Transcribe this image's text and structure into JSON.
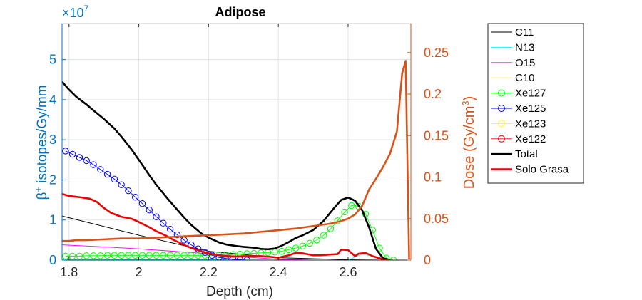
{
  "chart_data": {
    "type": "line",
    "title": "Adipose",
    "xlabel": "Depth (cm)",
    "ylabel_left": "β+ isotopes/Gy/mm",
    "ylabel_left_base": "β",
    "ylabel_left_sup": "+",
    "ylabel_left_rest": " isotopes/Gy/mm",
    "ylabel_right": "Dose (Gy/cm3)",
    "ylabel_right_base": "Dose (Gy/cm",
    "ylabel_right_sup": "3",
    "ylabel_right_end": ")",
    "left_axis_multiplier": "×10",
    "left_axis_exponent": "7",
    "xlim": [
      1.78,
      2.78
    ],
    "ylim_left": [
      0,
      5.9
    ],
    "ylim_right": [
      0,
      0.285
    ],
    "x_ticks": [
      1.8,
      2,
      2.2,
      2.4,
      2.6
    ],
    "x_tick_labels": [
      "1.8",
      "2",
      "2.2",
      "2.4",
      "2.6"
    ],
    "y_left_ticks": [
      0,
      1,
      2,
      3,
      4,
      5
    ],
    "y_left_tick_labels": [
      "0",
      "1",
      "2",
      "3",
      "4",
      "5"
    ],
    "y_right_ticks": [
      0,
      0.05,
      0.1,
      0.15,
      0.2,
      0.25
    ],
    "y_right_tick_labels": [
      "0",
      "0.05",
      "0.1",
      "0.15",
      "0.2",
      "0.25"
    ],
    "grid": true,
    "legend_position": "outside-right",
    "series": [
      {
        "name": "C11",
        "axis": "left",
        "color": "#000000",
        "width": 0.9,
        "marker": "none",
        "x": [
          1.78,
          2.0,
          2.2,
          2.4,
          2.6,
          2.7
        ],
        "y": [
          1.1,
          0.62,
          0.22,
          0.06,
          0.01,
          0.0
        ]
      },
      {
        "name": "N13",
        "axis": "left",
        "color": "#00ffff",
        "width": 0.9,
        "marker": "none",
        "x": [
          1.78,
          2.2,
          2.4,
          2.6,
          2.64,
          2.7,
          2.72
        ],
        "y": [
          0.02,
          0.01,
          0.0,
          0.0,
          0.15,
          0.05,
          0.0
        ]
      },
      {
        "name": "O15",
        "axis": "left",
        "color": "#ff00ff",
        "width": 0.9,
        "marker": "none",
        "x": [
          1.78,
          1.9,
          2.0,
          2.1,
          2.2,
          2.3,
          2.4,
          2.5
        ],
        "y": [
          0.38,
          0.33,
          0.28,
          0.22,
          0.16,
          0.08,
          0.02,
          0.0
        ]
      },
      {
        "name": "C10",
        "axis": "left",
        "color": "#ffff00",
        "width": 0.9,
        "marker": "none",
        "x": [
          1.78,
          2.78
        ],
        "y": [
          0.0,
          0.0
        ]
      },
      {
        "name": "Xe127",
        "axis": "left",
        "color": "#00ff00",
        "width": 0.9,
        "marker": "circle",
        "x": [
          1.79,
          1.81,
          1.83,
          1.85,
          1.87,
          1.89,
          1.91,
          1.93,
          1.95,
          1.97,
          1.99,
          2.01,
          2.03,
          2.05,
          2.07,
          2.09,
          2.11,
          2.13,
          2.15,
          2.17,
          2.19,
          2.21,
          2.23,
          2.25,
          2.27,
          2.29,
          2.31,
          2.33,
          2.35,
          2.37,
          2.39,
          2.41,
          2.43,
          2.45,
          2.47,
          2.49,
          2.51,
          2.53,
          2.55,
          2.57,
          2.59,
          2.61,
          2.63,
          2.65,
          2.67,
          2.69,
          2.71,
          2.73
        ],
        "y": [
          0.1,
          0.1,
          0.1,
          0.11,
          0.11,
          0.11,
          0.12,
          0.12,
          0.12,
          0.12,
          0.12,
          0.12,
          0.12,
          0.12,
          0.12,
          0.12,
          0.12,
          0.12,
          0.12,
          0.12,
          0.12,
          0.12,
          0.13,
          0.13,
          0.14,
          0.15,
          0.16,
          0.17,
          0.18,
          0.19,
          0.2,
          0.22,
          0.26,
          0.3,
          0.35,
          0.42,
          0.5,
          0.62,
          0.78,
          0.98,
          1.2,
          1.36,
          1.34,
          1.15,
          0.75,
          0.3,
          0.05,
          0.0
        ]
      },
      {
        "name": "Xe125",
        "axis": "left",
        "color": "#0000ff",
        "width": 0.9,
        "marker": "circle",
        "x": [
          1.79,
          1.81,
          1.83,
          1.85,
          1.87,
          1.89,
          1.91,
          1.93,
          1.95,
          1.97,
          1.99,
          2.01,
          2.03,
          2.05,
          2.07,
          2.09,
          2.11,
          2.13,
          2.15,
          2.17,
          2.19,
          2.21,
          2.23,
          2.25,
          2.27,
          2.29,
          2.31
        ],
        "y": [
          2.72,
          2.64,
          2.56,
          2.48,
          2.38,
          2.26,
          2.14,
          2.02,
          1.88,
          1.73,
          1.57,
          1.41,
          1.25,
          1.08,
          0.92,
          0.77,
          0.63,
          0.5,
          0.38,
          0.28,
          0.19,
          0.12,
          0.07,
          0.04,
          0.02,
          0.01,
          0.0
        ]
      },
      {
        "name": "Xe123",
        "axis": "left",
        "color": "#ffff00",
        "width": 0.9,
        "marker": "circle",
        "x": [],
        "y": []
      },
      {
        "name": "Xe122",
        "axis": "left",
        "color": "#ff0000",
        "width": 0.9,
        "marker": "circle",
        "x": [],
        "y": []
      },
      {
        "name": "Total",
        "axis": "left",
        "color": "#000000",
        "width": 2.6,
        "marker": "none",
        "x": [
          1.78,
          1.8,
          1.82,
          1.85,
          1.88,
          1.9,
          1.93,
          1.95,
          1.98,
          2.0,
          2.03,
          2.05,
          2.08,
          2.1,
          2.13,
          2.15,
          2.18,
          2.2,
          2.23,
          2.25,
          2.28,
          2.3,
          2.33,
          2.35,
          2.37,
          2.39,
          2.41,
          2.43,
          2.45,
          2.47,
          2.5,
          2.53,
          2.56,
          2.58,
          2.6,
          2.62,
          2.64,
          2.66,
          2.68,
          2.7,
          2.72
        ],
        "y": [
          4.45,
          4.25,
          4.08,
          3.88,
          3.66,
          3.52,
          3.28,
          3.08,
          2.75,
          2.5,
          2.12,
          1.88,
          1.56,
          1.36,
          1.06,
          0.88,
          0.66,
          0.56,
          0.44,
          0.39,
          0.35,
          0.33,
          0.31,
          0.28,
          0.27,
          0.29,
          0.36,
          0.45,
          0.55,
          0.62,
          0.75,
          0.98,
          1.3,
          1.5,
          1.56,
          1.48,
          1.25,
          0.82,
          0.28,
          0.05,
          0.0
        ]
      },
      {
        "name": "Solo Grasa",
        "axis": "left",
        "color": "#ee0000",
        "width": 2.6,
        "marker": "none",
        "x": [
          1.78,
          1.8,
          1.83,
          1.86,
          1.88,
          1.9,
          1.92,
          1.95,
          1.98,
          2.0,
          2.03,
          2.05,
          2.08,
          2.1,
          2.13,
          2.15,
          2.18,
          2.2,
          2.23,
          2.25,
          2.28,
          2.3,
          2.33,
          2.35,
          2.38,
          2.4,
          2.43,
          2.45,
          2.47,
          2.5,
          2.52,
          2.55,
          2.57,
          2.58,
          2.6,
          2.62,
          2.63,
          2.65,
          2.67,
          2.7,
          2.72
        ],
        "y": [
          1.65,
          1.6,
          1.57,
          1.53,
          1.45,
          1.3,
          1.18,
          1.08,
          1.03,
          0.95,
          0.82,
          0.72,
          0.6,
          0.5,
          0.38,
          0.3,
          0.22,
          0.17,
          0.12,
          0.1,
          0.09,
          0.1,
          0.1,
          0.1,
          0.08,
          0.06,
          0.12,
          0.18,
          0.17,
          0.12,
          0.12,
          0.14,
          0.15,
          0.26,
          0.25,
          0.1,
          0.16,
          0.18,
          0.1,
          0.02,
          0.0
        ]
      },
      {
        "name": "Dose",
        "axis": "right",
        "color": "#d95319",
        "width": 2.6,
        "marker": "none",
        "in_legend": false,
        "x": [
          1.78,
          1.8,
          1.82,
          1.85,
          1.9,
          1.95,
          2.0,
          2.05,
          2.1,
          2.15,
          2.2,
          2.25,
          2.3,
          2.35,
          2.4,
          2.45,
          2.5,
          2.55,
          2.58,
          2.6,
          2.62,
          2.64,
          2.66,
          2.68,
          2.7,
          2.72,
          2.74,
          2.755,
          2.765,
          2.775
        ],
        "y": [
          0.023,
          0.023,
          0.024,
          0.024,
          0.025,
          0.026,
          0.026,
          0.027,
          0.028,
          0.029,
          0.03,
          0.031,
          0.032,
          0.034,
          0.036,
          0.038,
          0.041,
          0.044,
          0.047,
          0.05,
          0.055,
          0.065,
          0.085,
          0.098,
          0.112,
          0.128,
          0.155,
          0.225,
          0.24,
          0.001
        ]
      }
    ]
  }
}
